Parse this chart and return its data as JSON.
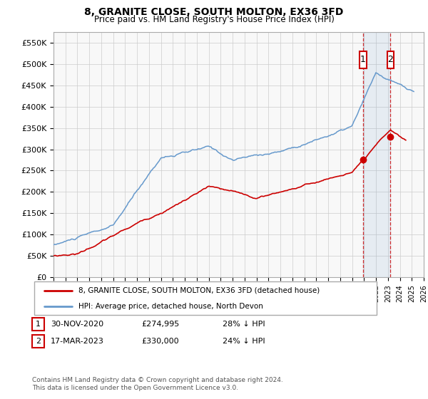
{
  "title": "8, GRANITE CLOSE, SOUTH MOLTON, EX36 3FD",
  "subtitle": "Price paid vs. HM Land Registry's House Price Index (HPI)",
  "ylabel_ticks": [
    "£0",
    "£50K",
    "£100K",
    "£150K",
    "£200K",
    "£250K",
    "£300K",
    "£350K",
    "£400K",
    "£450K",
    "£500K",
    "£550K"
  ],
  "ytick_values": [
    0,
    50000,
    100000,
    150000,
    200000,
    250000,
    300000,
    350000,
    400000,
    450000,
    500000,
    550000
  ],
  "xlim": [
    1995,
    2026
  ],
  "ylim": [
    0,
    575000
  ],
  "marker1_x": 2020.92,
  "marker1_y": 274995,
  "marker2_x": 2023.21,
  "marker2_y": 330000,
  "legend_line1": "8, GRANITE CLOSE, SOUTH MOLTON, EX36 3FD (detached house)",
  "legend_line2": "HPI: Average price, detached house, North Devon",
  "table_row1": [
    "1",
    "30-NOV-2020",
    "£274,995",
    "28% ↓ HPI"
  ],
  "table_row2": [
    "2",
    "17-MAR-2023",
    "£330,000",
    "24% ↓ HPI"
  ],
  "footer": "Contains HM Land Registry data © Crown copyright and database right 2024.\nThis data is licensed under the Open Government Licence v3.0.",
  "hpi_color": "#6699cc",
  "price_color": "#cc0000",
  "grid_color": "#cccccc",
  "chart_bg": "#f8f8f8"
}
